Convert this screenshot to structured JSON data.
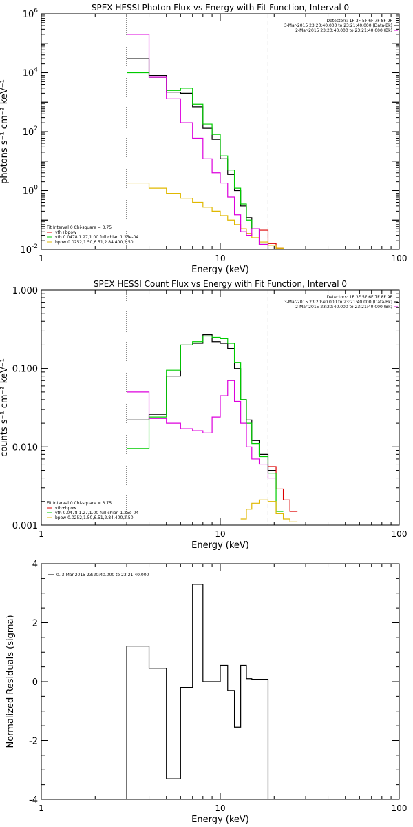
{
  "chart_data": [
    {
      "type": "line",
      "title": "SPEX HESSI Photon Flux vs Energy with Fit Function, Interval 0",
      "xlabel": "Energy (keV)",
      "ylabel": "photons s⁻¹ cm⁻² keV⁻¹",
      "xscale": "log",
      "yscale": "log",
      "xlim": [
        1,
        100
      ],
      "ylim": [
        0.01,
        1000000
      ],
      "xticks": [
        "1",
        "10",
        "100"
      ],
      "yticks": [
        {
          "v": 0.01,
          "m": "10",
          "e": "-2"
        },
        {
          "v": 1,
          "m": "10",
          "e": "0"
        },
        {
          "v": 100,
          "m": "10",
          "e": "2"
        },
        {
          "v": 10000,
          "m": "10",
          "e": "4"
        },
        {
          "v": 1000000,
          "m": "10",
          "e": "6"
        }
      ],
      "vlines": [
        {
          "x": 3.0,
          "style": "dotted"
        },
        {
          "x": 18.5,
          "style": "dashed"
        }
      ],
      "edges": [
        3.0,
        4.0,
        5.0,
        6.0,
        7.0,
        8.0,
        9.0,
        10.0,
        11.0,
        12.0,
        13.0,
        14.0,
        15.0,
        16.5,
        18.5,
        20.5,
        22.5,
        24.5,
        27.0
      ],
      "series": [
        {
          "name": "black",
          "color": "#000000",
          "values": [
            30000,
            8000,
            2200,
            2000,
            700,
            130,
            55,
            12,
            3.5,
            1,
            0.3,
            0.12,
            0.05,
            null,
            null,
            null,
            null,
            null
          ]
        },
        {
          "name": "vth+bpow",
          "color": "#dd0000",
          "values": [
            null,
            null,
            null,
            null,
            null,
            null,
            null,
            null,
            null,
            null,
            null,
            null,
            null,
            0.045,
            0.016,
            0.011,
            null,
            null
          ]
        },
        {
          "name": "vth",
          "color": "#00cc00",
          "values": [
            10000,
            7000,
            2500,
            3000,
            850,
            180,
            80,
            15,
            5,
            1.2,
            0.35,
            0.1,
            0.05,
            0.015,
            0.009,
            null,
            null,
            null
          ]
        },
        {
          "name": "bpow",
          "color": "#e0b800",
          "values": [
            1.8,
            1.2,
            0.8,
            0.55,
            0.4,
            0.27,
            0.2,
            0.14,
            0.1,
            0.07,
            0.05,
            0.035,
            0.025,
            0.018,
            0.014,
            0.011,
            0.009,
            0.008
          ]
        },
        {
          "name": "magenta",
          "color": "#dd00dd",
          "values": [
            200000,
            7000,
            1300,
            200,
            60,
            12,
            4,
            1.8,
            0.6,
            0.15,
            0.04,
            0.03,
            0.05,
            0.015,
            0.008,
            null,
            null,
            null
          ]
        }
      ],
      "legend_lines": [
        {
          "text": "Detectors: 1F 3F 5F 6F 7F 8F 9F",
          "color": "#000000"
        },
        {
          "text": "3-Mar-2015 23:20:40.000 to 23:21:40.000 (Data-Bk)",
          "color": "#000000"
        },
        {
          "text": "2-Mar-2015 23:20:40.000 to 23:21:40.000 (Bk)",
          "color": "#dd00dd"
        }
      ],
      "fit_legend": [
        {
          "text": "Fit Interval 0   Chi-square = 3.75",
          "color": "#000000"
        },
        {
          "text": "vth+bpow",
          "color": "#dd0000"
        },
        {
          "text": "vth 0.0478,1.27,1.00  full chian 1.25e-04",
          "color": "#00cc00"
        },
        {
          "text": "bpow 0.0252,1.50,6.51,2.84,400,2.50",
          "color": "#e0b800"
        }
      ]
    },
    {
      "type": "line",
      "title": "SPEX HESSI Count Flux vs Energy with Fit Function, Interval 0",
      "xlabel": "Energy (keV)",
      "ylabel": "counts s⁻¹ cm⁻² keV⁻¹",
      "xscale": "log",
      "yscale": "log",
      "xlim": [
        1,
        100
      ],
      "ylim": [
        0.001,
        1.0
      ],
      "xticks": [
        "1",
        "10",
        "100"
      ],
      "yticks": [
        {
          "v": 0.001,
          "m": "0.001",
          "e": ""
        },
        {
          "v": 0.01,
          "m": "0.010",
          "e": ""
        },
        {
          "v": 0.1,
          "m": "0.100",
          "e": ""
        },
        {
          "v": 1.0,
          "m": "1.000",
          "e": ""
        }
      ],
      "vlines": [
        {
          "x": 3.0,
          "style": "dotted"
        },
        {
          "x": 18.5,
          "style": "dashed"
        }
      ],
      "edges": [
        3.0,
        4.0,
        5.0,
        6.0,
        7.0,
        8.0,
        9.0,
        10.0,
        11.0,
        12.0,
        13.0,
        14.0,
        15.0,
        16.5,
        18.5,
        20.5,
        22.5,
        24.5,
        27.0
      ],
      "series": [
        {
          "name": "black",
          "color": "#000000",
          "values": [
            0.022,
            0.026,
            0.08,
            0.2,
            0.21,
            0.27,
            0.22,
            0.21,
            0.18,
            0.1,
            0.04,
            0.022,
            0.012,
            0.008,
            0.005,
            null,
            null,
            null
          ]
        },
        {
          "name": "vth+bpow",
          "color": "#dd0000",
          "values": [
            null,
            null,
            null,
            null,
            null,
            null,
            null,
            null,
            null,
            null,
            null,
            null,
            null,
            null,
            0.0056,
            0.0029,
            0.0021,
            0.0015
          ]
        },
        {
          "name": "vth",
          "color": "#00cc00",
          "values": [
            0.0095,
            0.024,
            0.095,
            0.2,
            0.22,
            0.26,
            0.25,
            0.24,
            0.21,
            0.12,
            0.04,
            0.02,
            0.011,
            0.0075,
            0.0046,
            0.0015,
            null,
            null
          ]
        },
        {
          "name": "bpow",
          "color": "#e0b800",
          "values": [
            null,
            null,
            null,
            null,
            null,
            null,
            null,
            null,
            null,
            null,
            0.0012,
            0.0016,
            0.0019,
            0.0021,
            0.002,
            0.0014,
            0.0012,
            0.0011
          ]
        },
        {
          "name": "magenta",
          "color": "#dd00dd",
          "values": [
            0.05,
            0.023,
            0.02,
            0.017,
            0.016,
            0.015,
            0.024,
            0.045,
            0.07,
            0.038,
            0.02,
            0.01,
            0.007,
            0.006,
            0.004,
            null,
            null,
            null
          ]
        }
      ],
      "legend_lines": [
        {
          "text": "Detectors: 1F 3F 5F 6F 7F 8F 9F",
          "color": "#000000"
        },
        {
          "text": "3-Mar-2015 23:20:40.000 to 23:21:40.000 (Data-Bk)",
          "color": "#000000"
        },
        {
          "text": "2-Mar-2015 23:20:40.000 to 23:21:40.000 (Bk)",
          "color": "#dd00dd"
        }
      ],
      "fit_legend": [
        {
          "text": "Fit Interval 0   Chi-square = 3.75",
          "color": "#000000"
        },
        {
          "text": "vth+bpow",
          "color": "#dd0000"
        },
        {
          "text": "vth 0.0478,1.27,1.00  full chian 1.25e-04",
          "color": "#00cc00"
        },
        {
          "text": "bpow 0.0252,1.50,6.51,2.84,400,2.50",
          "color": "#e0b800"
        }
      ]
    },
    {
      "type": "line",
      "title": "",
      "xlabel": "Energy (keV)",
      "ylabel": "Normalized Residuals (sigma)",
      "xscale": "log",
      "yscale": "linear",
      "xlim": [
        1,
        100
      ],
      "ylim": [
        -4,
        4
      ],
      "xticks": [
        "1",
        "10",
        "100"
      ],
      "yticks": [
        {
          "v": -4,
          "m": "-4",
          "e": ""
        },
        {
          "v": -2,
          "m": "-2",
          "e": ""
        },
        {
          "v": 0,
          "m": "0",
          "e": ""
        },
        {
          "v": 2,
          "m": "2",
          "e": ""
        },
        {
          "v": 4,
          "m": "4",
          "e": ""
        }
      ],
      "vlines": [],
      "edges": [
        3.0,
        4.0,
        5.0,
        6.0,
        7.0,
        8.0,
        9.0,
        10.0,
        11.0,
        12.0,
        13.0,
        14.0,
        15.0,
        16.5,
        18.5
      ],
      "series": [
        {
          "name": "0. 3-Mar-2015 23:20:40.000 to 23:21:40.000",
          "color": "#000000",
          "values": [
            1.2,
            0.45,
            -3.3,
            -0.2,
            3.3,
            0.0,
            0.0,
            0.55,
            -0.3,
            -1.55,
            0.55,
            0.1,
            0.08,
            0.08
          ],
          "closed": true
        }
      ],
      "legend_lines": [
        {
          "text": "0. 3-Mar-2015 23:20:40.000 to 23:21:40.000",
          "color": "#000000"
        }
      ],
      "fit_legend": []
    }
  ]
}
